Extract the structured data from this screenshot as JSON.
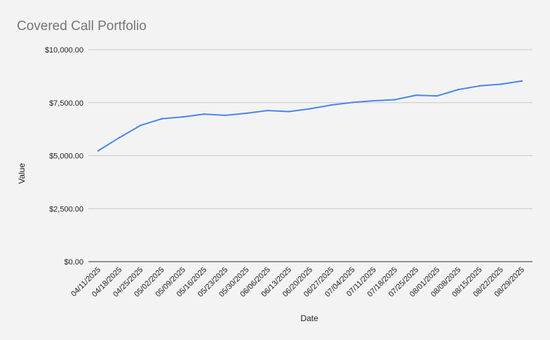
{
  "chart_data": {
    "type": "line",
    "title": "Covered Call Portfolio",
    "xlabel": "Date",
    "ylabel": "Value",
    "ylim": [
      0,
      10000
    ],
    "yticks": [
      "$0.00",
      "$2,500.00",
      "$5,000.00",
      "$7,500.00",
      "$10,000.00"
    ],
    "ytick_values": [
      0,
      2500,
      5000,
      7500,
      10000
    ],
    "grid": true,
    "legend": "none",
    "categories": [
      "04/11/2025",
      "04/18/2025",
      "04/25/2025",
      "05/02/2025",
      "05/09/2025",
      "05/16/2025",
      "05/23/2025",
      "05/30/2025",
      "06/06/2025",
      "06/13/2025",
      "06/20/2025",
      "06/27/2025",
      "07/04/2025",
      "07/11/2025",
      "07/18/2025",
      "07/25/2025",
      "08/01/2025",
      "08/08/2025",
      "08/15/2025",
      "08/22/2025",
      "08/29/2025"
    ],
    "series": [
      {
        "color": "#4a86e8",
        "values": [
          5230,
          5850,
          6430,
          6740,
          6830,
          6960,
          6900,
          7000,
          7130,
          7080,
          7210,
          7390,
          7510,
          7590,
          7640,
          7850,
          7820,
          8120,
          8290,
          8370,
          8520
        ]
      }
    ]
  }
}
